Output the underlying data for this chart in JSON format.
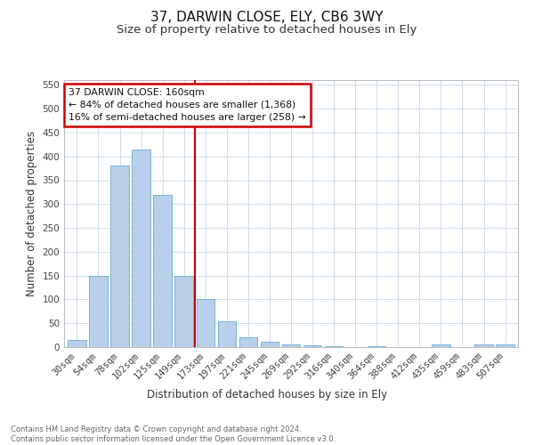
{
  "title1": "37, DARWIN CLOSE, ELY, CB6 3WY",
  "title2": "Size of property relative to detached houses in Ely",
  "xlabel": "Distribution of detached houses by size in Ely",
  "ylabel": "Number of detached properties",
  "footnote": "Contains HM Land Registry data © Crown copyright and database right 2024.\nContains public sector information licensed under the Open Government Licence v3.0.",
  "categories": [
    "30sqm",
    "54sqm",
    "78sqm",
    "102sqm",
    "125sqm",
    "149sqm",
    "173sqm",
    "197sqm",
    "221sqm",
    "245sqm",
    "269sqm",
    "292sqm",
    "316sqm",
    "340sqm",
    "364sqm",
    "388sqm",
    "412sqm",
    "435sqm",
    "459sqm",
    "483sqm",
    "507sqm"
  ],
  "values": [
    15,
    150,
    380,
    415,
    320,
    150,
    100,
    55,
    20,
    12,
    5,
    3,
    1,
    0,
    1,
    0,
    0,
    5,
    0,
    5,
    5
  ],
  "bar_color": "#b8d0ea",
  "bar_edge_color": "#6aaad4",
  "vline_color": "#cc0000",
  "annotation_text": "37 DARWIN CLOSE: 160sqm\n← 84% of detached houses are smaller (1,368)\n16% of semi-detached houses are larger (258) →",
  "annotation_box_color": "#cc0000",
  "ylim": [
    0,
    560
  ],
  "yticks": [
    0,
    50,
    100,
    150,
    200,
    250,
    300,
    350,
    400,
    450,
    500,
    550
  ],
  "bg_color": "#ffffff",
  "grid_color": "#d0dcec",
  "title_fontsize": 11,
  "subtitle_fontsize": 9.5,
  "axis_label_fontsize": 8.5,
  "tick_fontsize": 7.5,
  "footnote_fontsize": 6.0
}
